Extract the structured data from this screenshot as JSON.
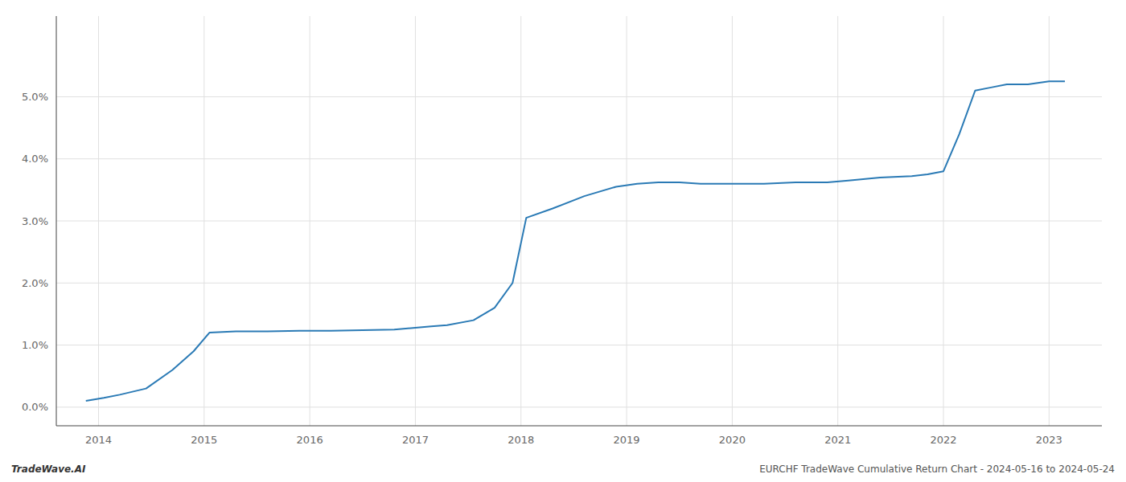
{
  "chart_data": {
    "type": "line",
    "x": [
      2013.88,
      2014.05,
      2014.2,
      2014.45,
      2014.7,
      2014.9,
      2015.05,
      2015.3,
      2015.6,
      2015.9,
      2016.2,
      2016.5,
      2016.8,
      2017.0,
      2017.15,
      2017.3,
      2017.55,
      2017.75,
      2017.92,
      2018.05,
      2018.3,
      2018.6,
      2018.9,
      2019.1,
      2019.3,
      2019.5,
      2019.7,
      2020.0,
      2020.3,
      2020.6,
      2020.9,
      2021.1,
      2021.4,
      2021.7,
      2021.85,
      2022.0,
      2022.15,
      2022.3,
      2022.45,
      2022.6,
      2022.8,
      2023.0,
      2023.15
    ],
    "values": [
      0.001,
      0.0015,
      0.002,
      0.003,
      0.006,
      0.009,
      0.012,
      0.0122,
      0.0122,
      0.0123,
      0.0123,
      0.0124,
      0.0125,
      0.0128,
      0.013,
      0.0132,
      0.014,
      0.016,
      0.02,
      0.0305,
      0.032,
      0.034,
      0.0355,
      0.036,
      0.0362,
      0.0362,
      0.036,
      0.036,
      0.036,
      0.0362,
      0.0362,
      0.0365,
      0.037,
      0.0372,
      0.0375,
      0.038,
      0.044,
      0.051,
      0.0515,
      0.052,
      0.052,
      0.0525,
      0.0525
    ],
    "color": "#2a7ab5",
    "xlim": [
      2013.6,
      2023.5
    ],
    "ylim": [
      -0.003,
      0.063
    ],
    "xticks": [
      2014,
      2015,
      2016,
      2017,
      2018,
      2019,
      2020,
      2021,
      2022,
      2023
    ],
    "yticks": [
      {
        "value": 0.0,
        "label": "0.0%"
      },
      {
        "value": 0.01,
        "label": "1.0%"
      },
      {
        "value": 0.02,
        "label": "2.0%"
      },
      {
        "value": 0.03,
        "label": "3.0%"
      },
      {
        "value": 0.04,
        "label": "4.0%"
      },
      {
        "value": 0.05,
        "label": "5.0%"
      }
    ],
    "grid": true,
    "annotations": [
      "TradeWave.AI",
      "EURCHF TradeWave Cumulative Return Chart - 2024-05-16 to 2024-05-24"
    ]
  }
}
